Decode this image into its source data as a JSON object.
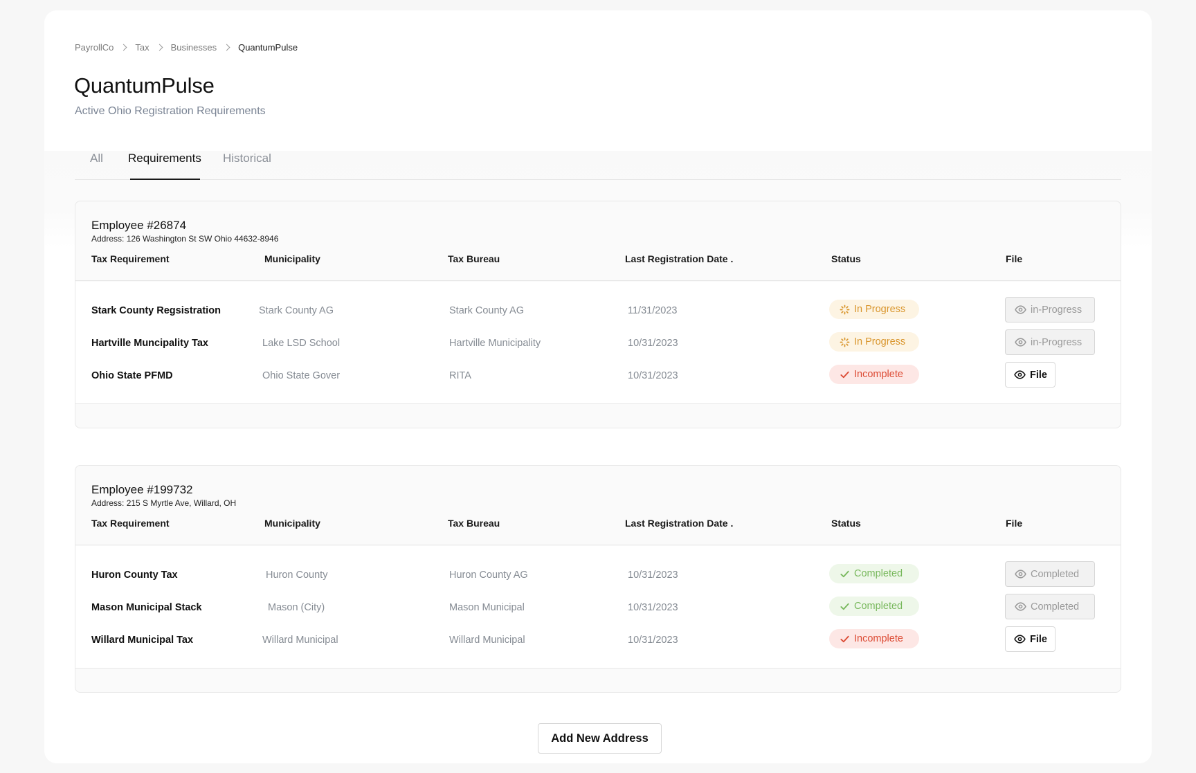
{
  "breadcrumb": [
    "PayrollCo",
    "Tax",
    "Businesses",
    "QuantumPulse"
  ],
  "page": {
    "title": "QuantumPulse",
    "subtitle": "Active Ohio Registration Requirements"
  },
  "tabs": [
    {
      "label": "All",
      "active": false
    },
    {
      "label": "Requirements",
      "active": true
    },
    {
      "label": "Historical",
      "active": false
    }
  ],
  "columns": {
    "tax_requirement": "Tax Requirement",
    "municipality": "Municipality",
    "tax_bureau": "Tax Bureau",
    "last_registration": "Last Registration Date .",
    "status": "Status",
    "file": "File"
  },
  "employees": [
    {
      "name": "Employee #26874",
      "address": "Address: 126 Washington St SW Ohio 44632-8946",
      "rows": [
        {
          "requirement": "Stark County Regsistration",
          "municipality": "Stark County AG",
          "bureau": "Stark County AG",
          "date": "11/31/2023",
          "status": "In Progress",
          "status_type": "progress",
          "file_label": "in-Progress",
          "file_enabled": false
        },
        {
          "requirement": "Hartville Muncipality Tax",
          "municipality": "Lake LSD School",
          "bureau": "Hartville Municipality",
          "date": "10/31/2023",
          "status": "In Progress",
          "status_type": "progress",
          "file_label": "in-Progress",
          "file_enabled": false
        },
        {
          "requirement": "Ohio State PFMD",
          "municipality": "Ohio State Gover",
          "bureau": "RITA",
          "date": "10/31/2023",
          "status": "Incomplete",
          "status_type": "incomplete",
          "file_label": "File",
          "file_enabled": true
        }
      ]
    },
    {
      "name": "Employee #199732",
      "address": "Address: 215 S Myrtle Ave, Willard, OH",
      "rows": [
        {
          "requirement": "Huron County Tax",
          "municipality": "Huron County",
          "bureau": "Huron County AG",
          "date": "10/31/2023",
          "status": "Completed",
          "status_type": "completed",
          "file_label": "Completed",
          "file_enabled": false
        },
        {
          "requirement": "Mason Municipal Stack",
          "municipality": "Mason (City)",
          "bureau": "Mason Municipal",
          "date": "10/31/2023",
          "status": "Completed",
          "status_type": "completed",
          "file_label": "Completed",
          "file_enabled": false
        },
        {
          "requirement": "Willard Municipal Tax",
          "municipality": "Willard Municipal",
          "bureau": "Willard Municipal",
          "date": "10/31/2023",
          "status": "Incomplete",
          "status_type": "incomplete",
          "file_label": "File",
          "file_enabled": true
        }
      ]
    }
  ],
  "status_icons": {
    "progress": "spinner-icon",
    "incomplete": "check-icon",
    "completed": "check-icon"
  },
  "file_icon": "eye-icon",
  "colors": {
    "progress": "#d9952c",
    "incomplete": "#dc4a33",
    "completed": "#78b85c"
  },
  "add_button": "Add New Address"
}
